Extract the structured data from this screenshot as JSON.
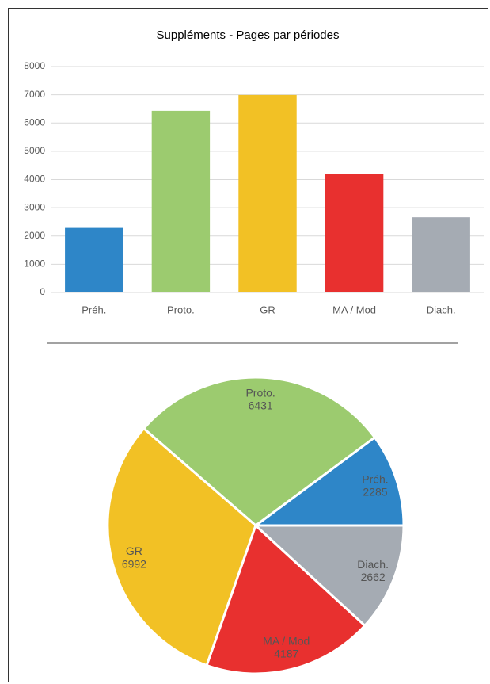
{
  "chart_data": [
    {
      "type": "bar",
      "title": "Suppléments - Pages par périodes",
      "categories": [
        "Préh.",
        "Proto.",
        "GR",
        "MA / Mod",
        "Diach."
      ],
      "values": [
        2285,
        6431,
        6992,
        4187,
        2662
      ],
      "colors": [
        "#2e86c8",
        "#9ccb6f",
        "#f2c125",
        "#e8302f",
        "#a5abb3"
      ],
      "ylim": [
        0,
        8000
      ],
      "yticks": [
        0,
        1000,
        2000,
        3000,
        4000,
        5000,
        6000,
        7000,
        8000
      ],
      "grid": true
    },
    {
      "type": "pie",
      "categories": [
        "Préh.",
        "Proto.",
        "GR",
        "MA / Mod",
        "Diach."
      ],
      "values": [
        2285,
        6431,
        6992,
        4187,
        2662
      ],
      "colors": [
        "#2e86c8",
        "#9ccb6f",
        "#f2c125",
        "#e8302f",
        "#a5abb3"
      ]
    }
  ]
}
